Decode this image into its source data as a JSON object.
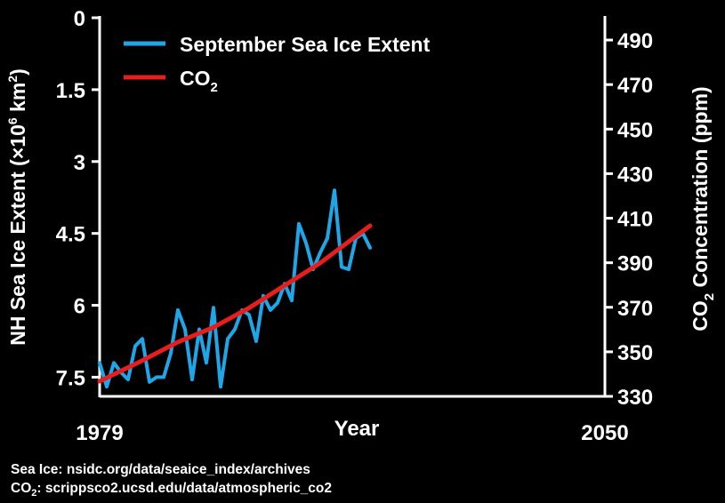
{
  "chart_data": {
    "type": "line",
    "x_ticks": [
      "1979",
      "2050"
    ],
    "xlim": [
      1979,
      2050
    ],
    "xlabel": "Year",
    "ylabel_left": {
      "text": "NH Sea Ice Extent (×10",
      "sup": "6",
      "mid": " km",
      "sup2": "2",
      "end": ")"
    },
    "ylabel_right": {
      "pre": "CO",
      "sub": "2",
      "post": " Concentration (ppm)"
    },
    "y_left": {
      "ylim": [
        0,
        7.9
      ],
      "inverted": true,
      "ticks": [
        "0",
        "1.5",
        "3",
        "4.5",
        "6",
        "7.5"
      ]
    },
    "y_right": {
      "ylim": [
        330,
        500
      ],
      "ticks": [
        "330",
        "350",
        "370",
        "390",
        "410",
        "430",
        "450",
        "470",
        "490"
      ]
    },
    "series": [
      {
        "name": "September Sea Ice Extent",
        "axis": "left",
        "color": "#1ea7e8",
        "x": [
          1979,
          1980,
          1981,
          1982,
          1983,
          1984,
          1985,
          1986,
          1987,
          1988,
          1989,
          1990,
          1991,
          1992,
          1993,
          1994,
          1995,
          1996,
          1997,
          1998,
          1999,
          2000,
          2001,
          2002,
          2003,
          2004,
          2005,
          2006,
          2007,
          2008,
          2009,
          2010,
          2011,
          2012,
          2013,
          2014,
          2015,
          2016,
          2017
        ],
        "values": [
          7.2,
          7.7,
          7.2,
          7.4,
          7.55,
          6.85,
          6.7,
          7.6,
          7.5,
          7.5,
          7.0,
          6.1,
          6.5,
          7.55,
          6.5,
          7.2,
          6.05,
          7.7,
          6.7,
          6.5,
          6.1,
          6.2,
          6.75,
          5.8,
          6.1,
          5.95,
          5.55,
          5.9,
          4.3,
          4.7,
          5.25,
          4.9,
          4.6,
          3.6,
          5.2,
          5.25,
          4.6,
          4.5,
          4.8
        ]
      },
      {
        "name": "CO₂",
        "axis": "right",
        "color": "#e61e1e",
        "x": [
          1979,
          1985,
          1990,
          1995,
          2000,
          2005,
          2010,
          2017
        ],
        "values": [
          336.8,
          346.1,
          354.4,
          361.0,
          369.7,
          379.8,
          389.9,
          406.6
        ]
      }
    ],
    "legend": {
      "placement": "top-left",
      "co2_label": "CO",
      "co2_sub": "2"
    },
    "grid": false
  },
  "sources": {
    "line1": "Sea Ice: nsidc.org/data/seaice_index/archives",
    "line2_pre": "CO",
    "line2_sub": "2",
    "line2_post": ": scrippsco2.ucsd.edu/data/atmospheric_co2"
  }
}
